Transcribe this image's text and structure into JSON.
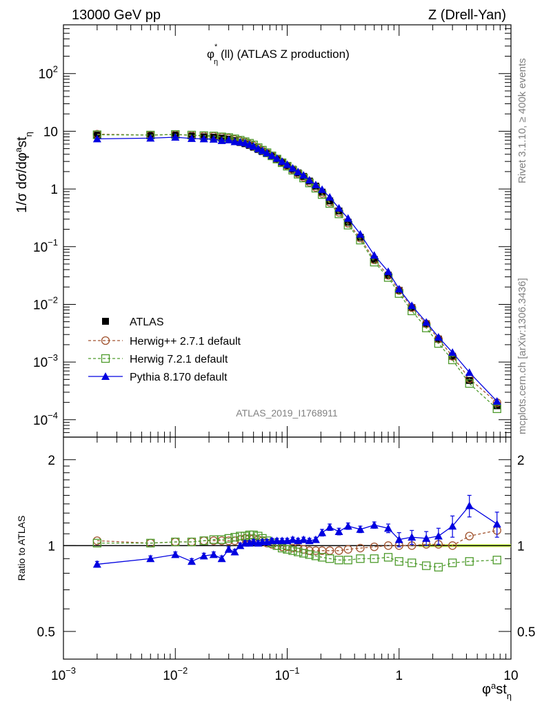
{
  "header": {
    "left": "13000 GeV pp",
    "right": "Z (Drell-Yan)"
  },
  "side_labels": {
    "rivet": "Rivet 3.1.10, ≥ 400k events",
    "mcplots": "mcplots.cern.ch [arXiv:1306.3436]"
  },
  "plot_title": "(ll) (ATLAS Z production)",
  "analysis_id": "ATLAS_2019_I1768911",
  "main_ylabel": "1/σ dσ/dφ*st",
  "ratio_ylabel": "Ratio to ATLAS",
  "xlabel": "φ*st",
  "x_ticks": [
    "10^-3",
    "10^-2",
    "10^-1",
    "1",
    "10"
  ],
  "y_ticks_main": [
    "10^-4",
    "10^-3",
    "10^-2",
    "10^-1",
    "1",
    "10",
    "10^2"
  ],
  "y_ticks_ratio": [
    "0.5",
    "1",
    "2"
  ],
  "colors": {
    "atlas": "#000000",
    "herwigpp": "#A0522D",
    "herwig7": "#4C9A2A",
    "pythia": "#0000E0",
    "band": "#CCFF33"
  },
  "chart_data": {
    "type": "scatter",
    "xscale": "log",
    "yscale": "log",
    "xlim": [
      0.001,
      10
    ],
    "ylim_main": [
      5e-05,
      700
    ],
    "ylim_ratio": [
      0.4,
      2.4
    ],
    "legend_position": "bottom-left",
    "x": [
      0.002,
      0.006,
      0.01,
      0.014,
      0.018,
      0.022,
      0.026,
      0.03,
      0.034,
      0.038,
      0.042,
      0.046,
      0.05,
      0.055,
      0.06,
      0.066,
      0.073,
      0.081,
      0.09,
      0.1,
      0.112,
      0.125,
      0.14,
      0.158,
      0.18,
      0.205,
      0.24,
      0.29,
      0.35,
      0.45,
      0.6,
      0.8,
      1.0,
      1.3,
      1.75,
      2.25,
      3.0,
      4.25,
      7.5
    ],
    "series": [
      {
        "name": "ATLAS",
        "style": "black-square",
        "values": [
          8.6,
          8.5,
          8.6,
          8.3,
          8.0,
          7.9,
          7.6,
          7.3,
          6.9,
          6.4,
          6.1,
          5.7,
          5.3,
          4.85,
          4.45,
          4.1,
          3.7,
          3.3,
          2.9,
          2.55,
          2.2,
          1.9,
          1.65,
          1.37,
          1.12,
          0.88,
          0.62,
          0.415,
          0.265,
          0.145,
          0.06,
          0.032,
          0.0175,
          0.0088,
          0.0046,
          0.0025,
          0.00126,
          0.00048,
          0.000175
        ],
        "ratio": [
          1,
          1,
          1,
          1,
          1,
          1,
          1,
          1,
          1,
          1,
          1,
          1,
          1,
          1,
          1,
          1,
          1,
          1,
          1,
          1,
          1,
          1,
          1,
          1,
          1,
          1,
          1,
          1,
          1,
          1,
          1,
          1,
          1,
          1,
          1,
          1,
          1,
          1,
          1
        ]
      },
      {
        "name": "Herwig++ 2.7.1 default",
        "style": "dashed-open-circle",
        "values": [
          8.9,
          8.6,
          8.8,
          8.5,
          8.3,
          8.2,
          7.9,
          7.6,
          7.2,
          6.8,
          6.5,
          6.0,
          5.6,
          5.1,
          4.6,
          4.2,
          3.75,
          3.3,
          2.9,
          2.52,
          2.16,
          1.85,
          1.6,
          1.31,
          1.07,
          0.84,
          0.59,
          0.395,
          0.255,
          0.141,
          0.059,
          0.0318,
          0.0174,
          0.0088,
          0.0046,
          0.0025,
          0.00126,
          0.000515,
          0.000198
        ],
        "ratio": [
          1.04,
          1.02,
          1.03,
          1.03,
          1.04,
          1.04,
          1.04,
          1.04,
          1.04,
          1.05,
          1.06,
          1.06,
          1.06,
          1.05,
          1.04,
          1.02,
          1.01,
          1.0,
          0.99,
          0.99,
          0.98,
          0.98,
          0.97,
          0.96,
          0.96,
          0.96,
          0.96,
          0.96,
          0.97,
          0.98,
          0.99,
          1.0,
          1.0,
          1.0,
          1.01,
          1.01,
          1.0,
          1.08,
          1.13
        ]
      },
      {
        "name": "Herwig 7.2.1 default",
        "style": "dashed-open-square",
        "values": [
          8.7,
          8.6,
          8.8,
          8.6,
          8.4,
          8.3,
          8.0,
          7.8,
          7.4,
          7.0,
          6.6,
          6.2,
          5.8,
          5.2,
          4.7,
          4.25,
          3.75,
          3.3,
          2.85,
          2.48,
          2.11,
          1.8,
          1.55,
          1.27,
          1.03,
          0.8,
          0.56,
          0.37,
          0.236,
          0.13,
          0.054,
          0.0292,
          0.0154,
          0.0077,
          0.0039,
          0.0021,
          0.00109,
          0.000425,
          0.000155
        ],
        "ratio": [
          1.02,
          1.02,
          1.03,
          1.03,
          1.04,
          1.05,
          1.05,
          1.06,
          1.07,
          1.08,
          1.08,
          1.09,
          1.09,
          1.08,
          1.06,
          1.04,
          1.02,
          1.0,
          0.98,
          0.97,
          0.96,
          0.95,
          0.94,
          0.93,
          0.92,
          0.91,
          0.9,
          0.89,
          0.89,
          0.9,
          0.9,
          0.91,
          0.88,
          0.87,
          0.85,
          0.84,
          0.87,
          0.88,
          0.89
        ]
      },
      {
        "name": "Pythia 8.170 default",
        "style": "solid-filled-triangle",
        "values": [
          7.4,
          7.6,
          7.9,
          7.5,
          7.4,
          7.3,
          6.9,
          7.1,
          6.6,
          6.5,
          6.3,
          5.9,
          5.5,
          5.0,
          4.6,
          4.2,
          3.8,
          3.4,
          3.0,
          2.65,
          2.3,
          1.98,
          1.73,
          1.43,
          1.18,
          0.98,
          0.72,
          0.465,
          0.31,
          0.165,
          0.071,
          0.037,
          0.0185,
          0.0095,
          0.0049,
          0.0027,
          0.00147,
          0.00066,
          0.000209
        ],
        "ratio": [
          0.86,
          0.9,
          0.93,
          0.88,
          0.92,
          0.93,
          0.9,
          0.97,
          0.95,
          1.0,
          1.02,
          1.02,
          1.03,
          1.02,
          1.03,
          1.03,
          1.04,
          1.04,
          1.04,
          1.04,
          1.05,
          1.04,
          1.05,
          1.04,
          1.05,
          1.11,
          1.16,
          1.12,
          1.17,
          1.14,
          1.18,
          1.15,
          1.05,
          1.07,
          1.06,
          1.08,
          1.17,
          1.38,
          1.19
        ],
        "ratio_err": [
          0.02,
          0.02,
          0.02,
          0.02,
          0.02,
          0.02,
          0.02,
          0.02,
          0.02,
          0.02,
          0.02,
          0.02,
          0.02,
          0.02,
          0.02,
          0.02,
          0.02,
          0.02,
          0.02,
          0.02,
          0.02,
          0.02,
          0.02,
          0.02,
          0.02,
          0.03,
          0.03,
          0.03,
          0.03,
          0.03,
          0.03,
          0.04,
          0.06,
          0.06,
          0.06,
          0.07,
          0.1,
          0.12,
          0.12
        ]
      }
    ]
  }
}
